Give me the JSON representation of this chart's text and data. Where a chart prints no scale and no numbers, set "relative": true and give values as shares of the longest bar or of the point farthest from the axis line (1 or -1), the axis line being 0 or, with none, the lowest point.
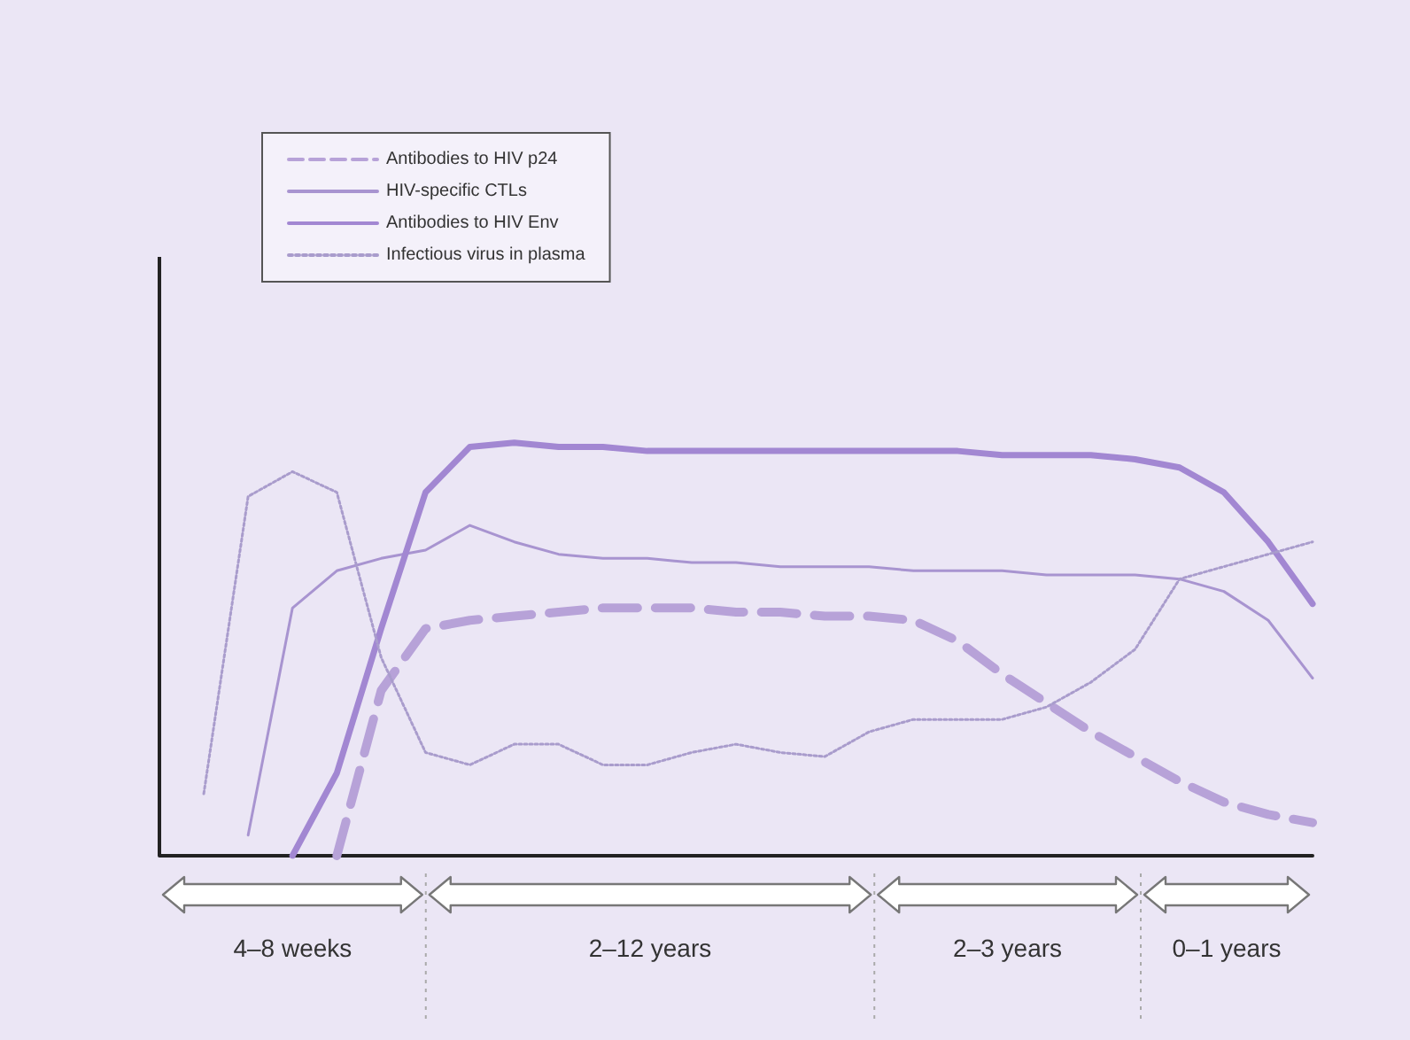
{
  "chart_data": {
    "type": "line",
    "relative": true,
    "legend": "top left",
    "marker": "none",
    "categories": [
      null,
      null,
      null,
      null,
      null,
      null,
      null,
      null,
      null,
      null,
      null,
      null,
      null,
      null,
      null,
      null,
      null,
      null,
      null,
      null,
      null,
      null,
      null,
      null,
      null,
      null,
      null
    ],
    "series": [
      {
        "name": "Antibodies to HIV p24",
        "color": "#b7a2d8",
        "line_style": "dashed",
        "values": [
          null,
          null,
          null,
          null,
          0,
          0.4,
          0.55,
          0.57,
          0.58,
          0.59,
          0.6,
          0.6,
          0.6,
          0.59,
          0.59,
          0.58,
          0.58,
          0.57,
          0.52,
          0.44,
          0.37,
          0.3,
          0.24,
          0.18,
          0.13,
          0.1,
          0.08
        ]
      },
      {
        "name": "HIV-specific CTLs",
        "color": "#a894d0",
        "line_style": "solid",
        "values": [
          null,
          null,
          0.05,
          0.6,
          0.69,
          0.72,
          0.74,
          0.8,
          0.76,
          0.73,
          0.72,
          0.72,
          0.71,
          0.71,
          0.7,
          0.7,
          0.7,
          0.69,
          0.69,
          0.69,
          0.68,
          0.68,
          0.68,
          0.67,
          0.64,
          0.57,
          0.43
        ]
      },
      {
        "name": "Antibodies to HIV Env",
        "color": "#a287d2",
        "line_style": "solid",
        "values": [
          null,
          null,
          null,
          0,
          0.2,
          0.55,
          0.88,
          0.99,
          1,
          0.99,
          0.99,
          0.98,
          0.98,
          0.98,
          0.98,
          0.98,
          0.98,
          0.98,
          0.98,
          0.97,
          0.97,
          0.97,
          0.96,
          0.94,
          0.88,
          0.76,
          0.61
        ]
      },
      {
        "name": "Infectious virus in plasma",
        "color": "#a99ccc",
        "line_style": "dotted",
        "values": [
          null,
          0.15,
          0.87,
          0.93,
          0.88,
          0.48,
          0.25,
          0.22,
          0.27,
          0.27,
          0.22,
          0.22,
          0.25,
          0.27,
          0.25,
          0.24,
          0.3,
          0.33,
          0.33,
          0.33,
          0.36,
          0.42,
          0.5,
          0.67,
          0.7,
          0.73,
          0.76
        ]
      }
    ],
    "annotations": [
      "4–8 weeks",
      "2–12 years",
      "2–3 years",
      "0–1 years"
    ]
  }
}
